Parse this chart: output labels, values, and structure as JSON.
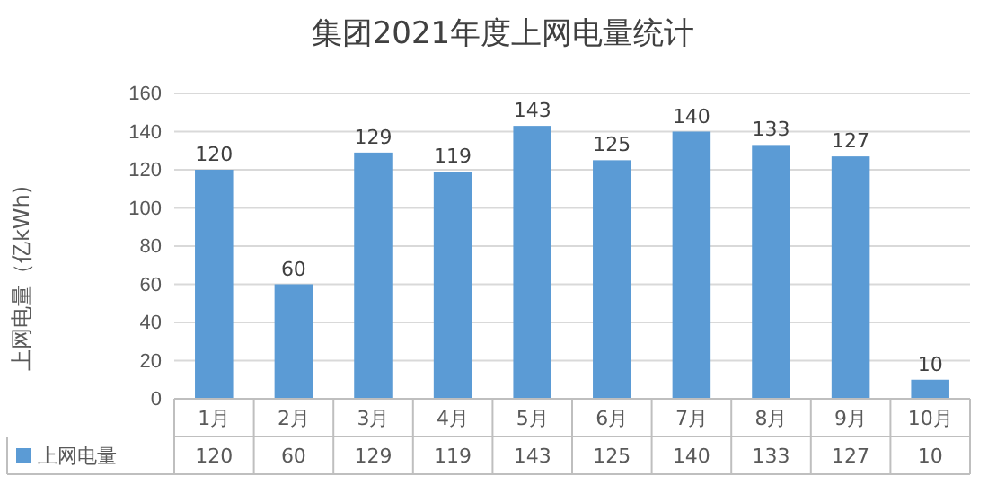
{
  "chart_data": {
    "type": "bar",
    "title": "集团2021年度上网电量统计",
    "ylabel": "上网电量（亿kWh)",
    "categories": [
      "1月",
      "2月",
      "3月",
      "4月",
      "5月",
      "6月",
      "7月",
      "8月",
      "9月",
      "10月"
    ],
    "series": [
      {
        "name": "上网电量",
        "color": "#5b9bd5",
        "values": [
          120,
          60,
          129,
          119,
          143,
          125,
          140,
          133,
          127,
          10
        ]
      }
    ],
    "annotations": [
      "120",
      "60",
      "129",
      "119",
      "143",
      "125",
      "140",
      "133",
      "127",
      "10"
    ],
    "ylim": [
      0,
      160
    ],
    "yticks": [
      0,
      20,
      40,
      60,
      80,
      100,
      120,
      140,
      160
    ],
    "grid": "y",
    "data_labels": true,
    "legend": "bottom left"
  }
}
